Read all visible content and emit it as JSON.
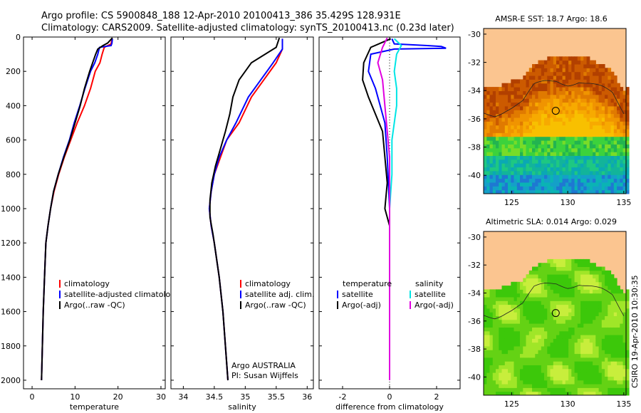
{
  "header": {
    "line1": "Argo profile: CS 5900848_188 12-Apr-2010 20100413_386 35.429S 128.931E",
    "line2": "Climatology: CARS2009. Satellite-adjusted climatology: synTS_20100413.nc (0.23d later)"
  },
  "side_label": "CSIRO 19-Apr-2010 10:30:35",
  "colors": {
    "climatology": "#ff0000",
    "satellite": "#0000ff",
    "argo": "#000000",
    "sat_sal": "#00e5e5",
    "argo_sal": "#e000e0",
    "land": "#fbc590"
  },
  "chart_data": [
    {
      "type": "line",
      "xlabel": "temperature",
      "ylabel": "",
      "xlim": [
        -2,
        31
      ],
      "ylim": [
        2050,
        0
      ],
      "y_reversed": true,
      "xticks": [
        "0",
        "10",
        "20",
        "30"
      ],
      "yticks": [
        "0",
        "200",
        "400",
        "600",
        "800",
        "1000",
        "1200",
        "1400",
        "1600",
        "1800",
        "2000"
      ],
      "legend": [
        "climatology",
        "satellite-adjusted climatology",
        "Argo(..raw -QC)"
      ],
      "series": [
        {
          "name": "climatology",
          "color": "#ff0000",
          "points": [
            [
              18.6,
              10
            ],
            [
              18.4,
              40
            ],
            [
              16.8,
              60
            ],
            [
              16.3,
              100
            ],
            [
              15.8,
              150
            ],
            [
              14.7,
              200
            ],
            [
              13.6,
              300
            ],
            [
              12.2,
              400
            ],
            [
              10.5,
              500
            ],
            [
              9.0,
              600
            ],
            [
              7.5,
              700
            ],
            [
              6.2,
              800
            ],
            [
              5.1,
              900
            ],
            [
              4.3,
              1000
            ],
            [
              3.7,
              1100
            ],
            [
              3.2,
              1200
            ],
            [
              2.9,
              1400
            ],
            [
              2.6,
              1600
            ],
            [
              2.4,
              1800
            ],
            [
              2.2,
              2000
            ]
          ]
        },
        {
          "name": "satellite-adjusted climatology",
          "color": "#0000ff",
          "points": [
            [
              18.7,
              10
            ],
            [
              18.6,
              35
            ],
            [
              18.4,
              50
            ],
            [
              15.7,
              60
            ],
            [
              15.3,
              100
            ],
            [
              14.6,
              150
            ],
            [
              13.6,
              200
            ],
            [
              12.3,
              300
            ],
            [
              11.1,
              400
            ],
            [
              9.8,
              500
            ],
            [
              8.7,
              600
            ],
            [
              7.3,
              700
            ],
            [
              6.1,
              800
            ],
            [
              5.0,
              900
            ],
            [
              4.3,
              1000
            ],
            [
              3.7,
              1100
            ],
            [
              3.2,
              1200
            ],
            [
              2.9,
              1400
            ],
            [
              2.6,
              1600
            ],
            [
              2.4,
              1800
            ],
            [
              2.2,
              2000
            ]
          ]
        },
        {
          "name": "Argo(..raw -QC)",
          "color": "#000000",
          "points": [
            [
              18.7,
              5
            ],
            [
              17.6,
              35
            ],
            [
              16.5,
              50
            ],
            [
              15.3,
              70
            ],
            [
              14.8,
              100
            ],
            [
              14.1,
              150
            ],
            [
              13.4,
              200
            ],
            [
              12.2,
              300
            ],
            [
              11.2,
              400
            ],
            [
              10.0,
              500
            ],
            [
              8.8,
              600
            ],
            [
              7.4,
              700
            ],
            [
              6.1,
              800
            ],
            [
              5.0,
              900
            ],
            [
              4.3,
              1000
            ],
            [
              3.7,
              1100
            ],
            [
              3.2,
              1200
            ],
            [
              2.9,
              1400
            ],
            [
              2.6,
              1600
            ],
            [
              2.4,
              1800
            ],
            [
              2.2,
              2000
            ]
          ]
        }
      ]
    },
    {
      "type": "line",
      "xlabel": "salinity",
      "ylabel": "",
      "xlim": [
        33.8,
        36.1
      ],
      "ylim": [
        2050,
        0
      ],
      "y_reversed": true,
      "xticks": [
        "34",
        "34.5",
        "35",
        "35.5",
        "36"
      ],
      "legend": [
        "climatology",
        "satellite adj. clim.",
        "Argo(..raw -QC)"
      ],
      "annotations": [
        "Argo AUSTRALIA",
        "PI: Susan Wijffels"
      ],
      "series": [
        {
          "name": "climatology",
          "color": "#ff0000",
          "points": [
            [
              35.6,
              10
            ],
            [
              35.6,
              70
            ],
            [
              35.5,
              150
            ],
            [
              35.3,
              250
            ],
            [
              35.1,
              350
            ],
            [
              34.9,
              500
            ],
            [
              34.7,
              600
            ],
            [
              34.6,
              700
            ],
            [
              34.5,
              800
            ],
            [
              34.45,
              900
            ],
            [
              34.42,
              1000
            ],
            [
              34.45,
              1100
            ],
            [
              34.5,
              1200
            ],
            [
              34.58,
              1400
            ],
            [
              34.64,
              1600
            ],
            [
              34.68,
              1800
            ],
            [
              34.72,
              2000
            ]
          ]
        },
        {
          "name": "satellite adj. clim.",
          "color": "#0000ff",
          "points": [
            [
              35.6,
              10
            ],
            [
              35.6,
              70
            ],
            [
              35.45,
              150
            ],
            [
              35.25,
              250
            ],
            [
              35.05,
              350
            ],
            [
              34.85,
              500
            ],
            [
              34.7,
              600
            ],
            [
              34.58,
              700
            ],
            [
              34.5,
              800
            ],
            [
              34.45,
              900
            ],
            [
              34.42,
              1000
            ],
            [
              34.45,
              1100
            ],
            [
              34.5,
              1200
            ],
            [
              34.58,
              1400
            ],
            [
              34.64,
              1600
            ],
            [
              34.68,
              1800
            ],
            [
              34.72,
              2000
            ]
          ]
        },
        {
          "name": "Argo(..raw -QC)",
          "color": "#000000",
          "points": [
            [
              35.55,
              5
            ],
            [
              35.5,
              60
            ],
            [
              35.1,
              150
            ],
            [
              34.9,
              250
            ],
            [
              34.8,
              350
            ],
            [
              34.75,
              450
            ],
            [
              34.68,
              550
            ],
            [
              34.6,
              650
            ],
            [
              34.52,
              750
            ],
            [
              34.46,
              850
            ],
            [
              34.43,
              950
            ],
            [
              34.43,
              1050
            ],
            [
              34.48,
              1150
            ],
            [
              34.52,
              1250
            ],
            [
              34.58,
              1400
            ],
            [
              34.64,
              1600
            ],
            [
              34.68,
              1800
            ],
            [
              34.72,
              2000
            ]
          ]
        }
      ]
    },
    {
      "type": "line",
      "xlabel": "difference from climatology",
      "ylabel": "",
      "xlim": [
        -3,
        3
      ],
      "ylim": [
        2050,
        0
      ],
      "y_reversed": true,
      "xticks": [
        "-2",
        "0",
        "2"
      ],
      "legend_temperature": [
        "temperature",
        "satellite",
        "Argo(-adj)"
      ],
      "legend_salinity": [
        "salinity",
        "satellite",
        "Argo(-adj)"
      ],
      "series": [
        {
          "name": "temperature satellite",
          "color": "#0000ff",
          "points": [
            [
              0.1,
              10
            ],
            [
              0.2,
              40
            ],
            [
              1.6,
              50
            ],
            [
              2.2,
              55
            ],
            [
              2.4,
              65
            ],
            [
              0.2,
              70
            ],
            [
              -0.8,
              100
            ],
            [
              -0.9,
              200
            ],
            [
              -0.6,
              300
            ],
            [
              -0.4,
              400
            ],
            [
              -0.2,
              500
            ],
            [
              -0.1,
              700
            ],
            [
              0,
              1000
            ],
            [
              0,
              2000
            ]
          ]
        },
        {
          "name": "temperature Argo(-adj)",
          "color": "#000000",
          "points": [
            [
              0.05,
              10
            ],
            [
              -0.8,
              60
            ],
            [
              -1.1,
              150
            ],
            [
              -1.15,
              250
            ],
            [
              -0.9,
              350
            ],
            [
              -0.6,
              450
            ],
            [
              -0.3,
              550
            ],
            [
              -0.2,
              700
            ],
            [
              -0.1,
              850
            ],
            [
              -0.2,
              1000
            ],
            [
              0,
              1100
            ],
            [
              0,
              2000
            ]
          ]
        },
        {
          "name": "salinity satellite",
          "color": "#00e5e5",
          "points": [
            [
              0.2,
              10
            ],
            [
              0.5,
              50
            ],
            [
              0.3,
              100
            ],
            [
              0.2,
              200
            ],
            [
              0.3,
              300
            ],
            [
              0.3,
              400
            ],
            [
              0.2,
              500
            ],
            [
              0.1,
              600
            ],
            [
              0.1,
              800
            ],
            [
              0,
              1000
            ],
            [
              0,
              2000
            ]
          ]
        },
        {
          "name": "salinity Argo(-adj)",
          "color": "#e000e0",
          "points": [
            [
              -0.1,
              5
            ],
            [
              -0.3,
              60
            ],
            [
              -0.5,
              150
            ],
            [
              -0.3,
              250
            ],
            [
              -0.2,
              400
            ],
            [
              -0.1,
              550
            ],
            [
              0,
              700
            ],
            [
              0,
              1000
            ],
            [
              0,
              1500
            ],
            [
              0,
              2000
            ]
          ]
        }
      ]
    },
    {
      "type": "heatmap",
      "title": "AMSR-E SST: 18.7 Argo: 18.6",
      "xlim": [
        122.5,
        135.2
      ],
      "ylim": [
        -41.3,
        -29.6
      ],
      "xticks": [
        "125",
        "130",
        "135"
      ],
      "yticks": [
        "-30",
        "-32",
        "-34",
        "-36",
        "-38",
        "-40"
      ],
      "marker": [
        128.931,
        -35.429
      ]
    },
    {
      "type": "heatmap",
      "title": "Altimetric SLA: 0.014 Argo: 0.029",
      "xlim": [
        122.5,
        135.2
      ],
      "ylim": [
        -41.3,
        -29.6
      ],
      "xticks": [
        "125",
        "130",
        "135"
      ],
      "yticks": [
        "-30",
        "-32",
        "-34",
        "-36",
        "-38",
        "-40"
      ],
      "marker": [
        128.931,
        -35.429
      ]
    }
  ]
}
